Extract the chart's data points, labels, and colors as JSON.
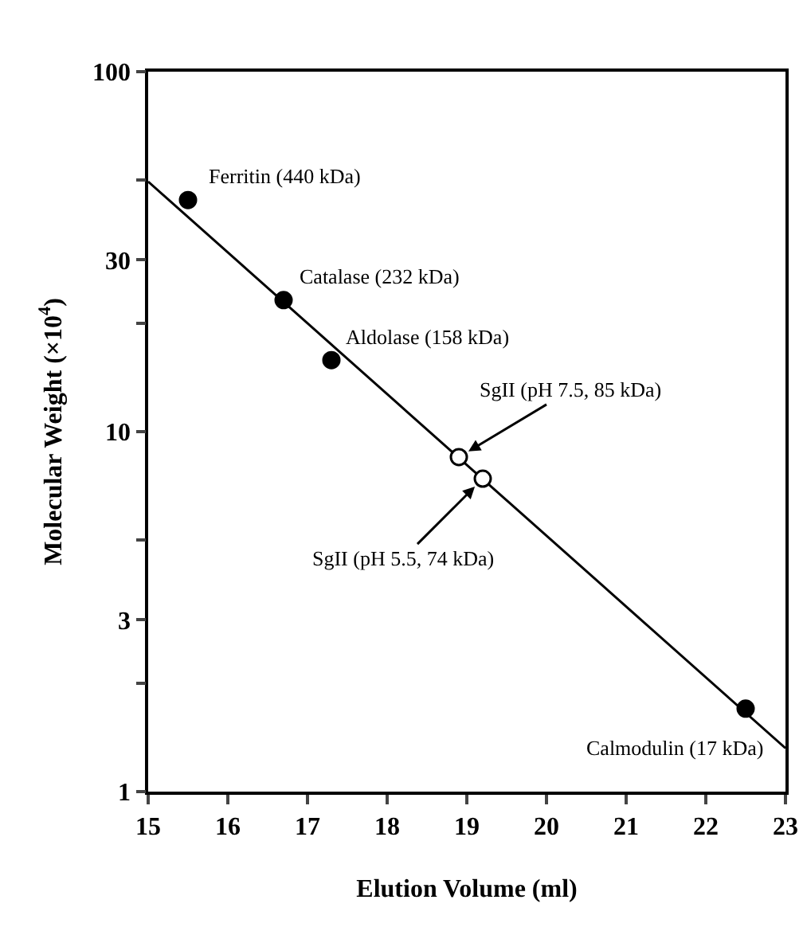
{
  "chart_data": {
    "type": "scatter",
    "xlabel": "Elution Volume (ml)",
    "ylabel": "Molecular Weight (×10$^{4}$)",
    "log": "y",
    "xlim": [
      15,
      23
    ],
    "xticks": [
      15,
      16,
      17,
      18,
      19,
      20,
      21,
      22,
      23
    ],
    "ylim": [
      1,
      100
    ],
    "yticks": [
      1,
      {
        "value": 2,
        "label": null
      },
      3,
      {
        "value": 5,
        "label": null
      },
      10,
      {
        "value": 20,
        "label": null
      },
      30,
      {
        "value": 50,
        "label": null
      },
      100
    ],
    "grid": false,
    "marker": "circle",
    "series": [
      {
        "color": "#000000",
        "x": [
          15.5,
          16.7,
          17.3,
          22.5
        ],
        "values": [
          44,
          23.2,
          15.8,
          1.7
        ]
      },
      {
        "color": "#ffffff",
        "x": [
          18.9,
          19.2
        ],
        "values": [
          8.5,
          7.4
        ]
      },
      {
        "type": "line",
        "color": "#000000",
        "marker": "none",
        "line_style": "solid",
        "x": [
          15,
          23
        ],
        "values": [
          49.5,
          1.32
        ]
      }
    ],
    "annotations": [
      {
        "text": "Ferritin (440 kDa)",
        "x": 15.5,
        "y": 44
      },
      {
        "text": "Catalase (232 kDa)",
        "x": 16.7,
        "y": 23.2
      },
      {
        "text": "Aldolase (158 kDa)",
        "x": 17.3,
        "y": 15.8
      },
      {
        "text": "SgII (pH 7.5, 85 kDa)",
        "x": 18.9,
        "y": 8.5
      },
      {
        "text": "SgII (pH 5.5, 74 kDa)",
        "x": 19.2,
        "y": 7.4
      },
      {
        "text": "Calmodulin (17 kDa)",
        "x": 22.5,
        "y": 1.7
      }
    ]
  }
}
